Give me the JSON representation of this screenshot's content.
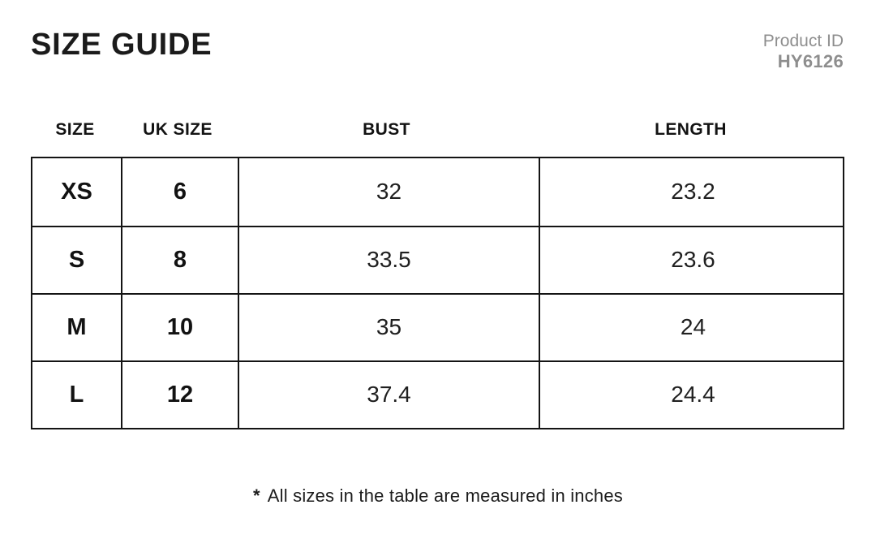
{
  "header": {
    "title": "SIZE GUIDE",
    "product_id_label": "Product ID",
    "product_id_value": "HY6126"
  },
  "table": {
    "headers": [
      "SIZE",
      "UK SIZE",
      "BUST",
      "LENGTH"
    ],
    "rows": [
      {
        "size": "XS",
        "uk_size": "6",
        "bust": "32",
        "length": "23.2"
      },
      {
        "size": "S",
        "uk_size": "8",
        "bust": "33.5",
        "length": "23.6"
      },
      {
        "size": "M",
        "uk_size": "10",
        "bust": "35",
        "length": "24"
      },
      {
        "size": "L",
        "uk_size": "12",
        "bust": "37.4",
        "length": "24.4"
      }
    ]
  },
  "footnote": {
    "marker": "*",
    "text": "All sizes in the table are measured in inches"
  },
  "colors": {
    "background": "#ffffff",
    "text": "#1b1b1b",
    "muted_gray": "#8e8e8e",
    "table_border": "#141414"
  },
  "units": "inches"
}
